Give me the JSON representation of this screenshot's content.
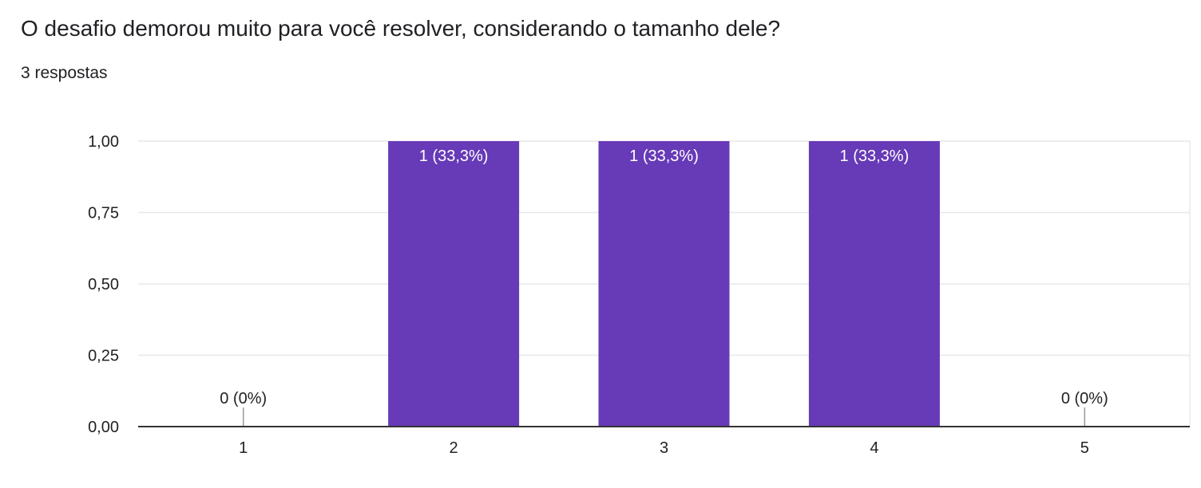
{
  "header": {
    "title": "O desafio demorou muito para você resolver, considerando o tamanho dele?",
    "subtitle": "3 respostas"
  },
  "chart_data": {
    "type": "bar",
    "categories": [
      "1",
      "2",
      "3",
      "4",
      "5"
    ],
    "values": [
      0,
      1,
      1,
      1,
      0
    ],
    "data_labels": [
      "0 (0%)",
      "1 (33,3%)",
      "1 (33,3%)",
      "1 (33,3%)",
      "0 (0%)"
    ],
    "ylim": [
      0,
      1
    ],
    "yticks": [
      "0,00",
      "0,25",
      "0,50",
      "0,75",
      "1,00"
    ],
    "ytick_values": [
      0,
      0.25,
      0.5,
      0.75,
      1
    ],
    "grid": true,
    "bar_color": "#673ab7"
  }
}
